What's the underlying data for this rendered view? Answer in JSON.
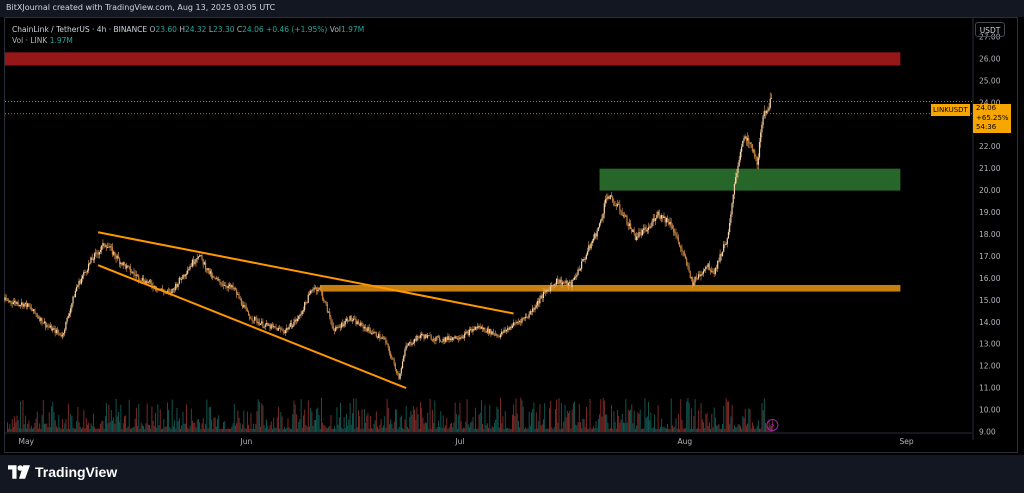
{
  "header": {
    "attribution": "BitXJournal created with TradingView.com, Aug 13, 2025 03:05 UTC"
  },
  "legend": {
    "symbol": "ChainLink / TetherUS · 4h · BINANCE",
    "open_label": "O",
    "open": "23.60",
    "high_label": "H",
    "high": "24.32",
    "low_label": "L",
    "low": "23.30",
    "close_label": "C",
    "close": "24.06",
    "change": "+0.46 (+1.95%)",
    "vol_label": "Vol",
    "vol": "1.97M",
    "vol_row_label": "Vol · LINK",
    "vol_row_value": "1.97M"
  },
  "price_scale": {
    "currency": "USDT"
  },
  "price_tag": {
    "symbol": "LINKUSDT",
    "price": "24.06",
    "change_pct": "+65.25%",
    "countdown": "54:36"
  },
  "footer": {
    "logo_text": "TradingView"
  },
  "colors": {
    "up": "#26a69a",
    "down": "#ef5350",
    "candle": "#e6a15a",
    "trendline": "#ff9800",
    "resistance_zone": "#b71c1c",
    "support_zone_green": "#2e7d32",
    "support_zone_orange": "#f39c12"
  },
  "chart_data": {
    "type": "candlestick",
    "symbol": "LINKUSDT",
    "timeframe": "4h",
    "exchange": "BINANCE",
    "xlim": [
      "2025-04-28",
      "2025-09-10"
    ],
    "ylim": [
      9.0,
      27.5
    ],
    "y_ticks": [
      9.0,
      10.0,
      11.0,
      12.0,
      13.0,
      14.0,
      15.0,
      16.0,
      17.0,
      18.0,
      19.0,
      20.0,
      21.0,
      22.0,
      23.0,
      24.0,
      25.0,
      26.0,
      27.0
    ],
    "x_ticks": [
      {
        "date": "2025-05-01",
        "label": "May"
      },
      {
        "date": "2025-06-01",
        "label": "Jun"
      },
      {
        "date": "2025-07-01",
        "label": "Jul"
      },
      {
        "date": "2025-08-01",
        "label": "Aug"
      },
      {
        "date": "2025-09-01",
        "label": "Sep"
      }
    ],
    "last_price": 24.06,
    "price_path": [
      [
        "2025-04-28",
        15.0
      ],
      [
        "2025-05-01",
        14.8
      ],
      [
        "2025-05-04",
        13.8
      ],
      [
        "2025-05-06",
        13.4
      ],
      [
        "2025-05-08",
        15.6
      ],
      [
        "2025-05-10",
        16.8
      ],
      [
        "2025-05-12",
        17.6
      ],
      [
        "2025-05-14",
        16.8
      ],
      [
        "2025-05-16",
        16.2
      ],
      [
        "2025-05-19",
        15.6
      ],
      [
        "2025-05-21",
        15.3
      ],
      [
        "2025-05-23",
        16.2
      ],
      [
        "2025-05-25",
        17.1
      ],
      [
        "2025-05-27",
        16.0
      ],
      [
        "2025-05-30",
        15.5
      ],
      [
        "2025-06-01",
        14.3
      ],
      [
        "2025-06-03",
        13.9
      ],
      [
        "2025-06-06",
        13.6
      ],
      [
        "2025-06-08",
        14.2
      ],
      [
        "2025-06-10",
        15.6
      ],
      [
        "2025-06-11",
        15.5
      ],
      [
        "2025-06-13",
        13.6
      ],
      [
        "2025-06-15",
        14.2
      ],
      [
        "2025-06-18",
        13.6
      ],
      [
        "2025-06-20",
        13.2
      ],
      [
        "2025-06-22",
        11.5
      ],
      [
        "2025-06-23",
        12.9
      ],
      [
        "2025-06-25",
        13.4
      ],
      [
        "2025-06-28",
        13.2
      ],
      [
        "2025-07-01",
        13.4
      ],
      [
        "2025-07-03",
        13.8
      ],
      [
        "2025-07-06",
        13.4
      ],
      [
        "2025-07-08",
        13.9
      ],
      [
        "2025-07-10",
        14.3
      ],
      [
        "2025-07-12",
        15.2
      ],
      [
        "2025-07-14",
        15.9
      ],
      [
        "2025-07-16",
        15.7
      ],
      [
        "2025-07-18",
        17.0
      ],
      [
        "2025-07-20",
        18.4
      ],
      [
        "2025-07-21",
        19.8
      ],
      [
        "2025-07-23",
        19.1
      ],
      [
        "2025-07-25",
        17.9
      ],
      [
        "2025-07-27",
        18.3
      ],
      [
        "2025-07-28",
        19.0
      ],
      [
        "2025-07-30",
        18.5
      ],
      [
        "2025-08-01",
        16.8
      ],
      [
        "2025-08-02",
        15.8
      ],
      [
        "2025-08-04",
        16.6
      ],
      [
        "2025-08-05",
        16.3
      ],
      [
        "2025-08-07",
        18.0
      ],
      [
        "2025-08-08",
        20.6
      ],
      [
        "2025-08-09",
        22.4
      ],
      [
        "2025-08-10",
        22.1
      ],
      [
        "2025-08-11",
        21.3
      ],
      [
        "2025-08-12",
        23.6
      ],
      [
        "2025-08-13",
        24.06
      ]
    ],
    "volume_note": "volume histogram at bottom; last bar Vol 1.97M",
    "trendlines": [
      {
        "name": "upper",
        "from": [
          "2025-05-11",
          18.1
        ],
        "to": [
          "2025-07-08",
          14.4
        ]
      },
      {
        "name": "lower",
        "from": [
          "2025-05-11",
          16.6
        ],
        "to": [
          "2025-06-23",
          11.0
        ]
      }
    ],
    "zones": [
      {
        "from_date": "2025-04-28",
        "to_date": "2025-08-31",
        "low": 25.7,
        "high": 26.3,
        "color": "#b71c1c"
      },
      {
        "from_date": "2025-07-20",
        "to_date": "2025-08-31",
        "low": 20.0,
        "high": 21.0,
        "color": "#2e7d32"
      },
      {
        "from_date": "2025-06-11",
        "to_date": "2025-08-31",
        "low": 15.4,
        "high": 15.7,
        "color": "#f39c12"
      }
    ],
    "levels": [
      24.06,
      23.5
    ]
  }
}
